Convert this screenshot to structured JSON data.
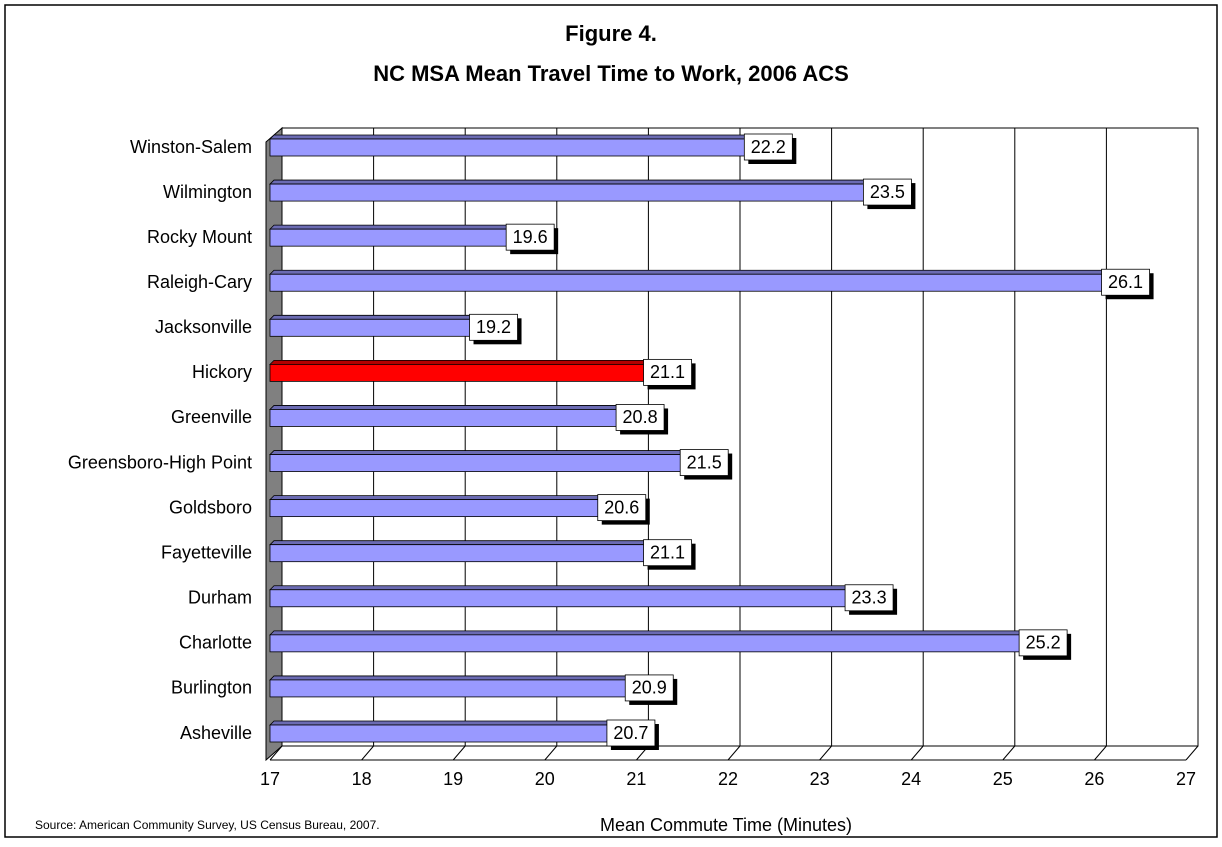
{
  "chart_data": {
    "type": "bar",
    "orientation": "horizontal",
    "title": "Figure 4.",
    "subtitle": "NC MSA Mean Travel Time to Work, 2006 ACS",
    "x_label": "Mean Commute Time (Minutes)",
    "source": "Source: American Community Survey, US Census Bureau, 2007.",
    "categories": [
      "Winston-Salem",
      "Wilmington",
      "Rocky Mount",
      "Raleigh-Cary",
      "Jacksonville",
      "Hickory",
      "Greenville",
      "Greensboro-High Point",
      "Goldsboro",
      "Fayetteville",
      "Durham",
      "Charlotte",
      "Burlington",
      "Asheville"
    ],
    "values": [
      22.2,
      23.5,
      19.6,
      26.1,
      19.2,
      21.1,
      20.8,
      21.5,
      20.6,
      21.1,
      23.3,
      25.2,
      20.9,
      20.7
    ],
    "colors": [
      "#9999ff",
      "#9999ff",
      "#9999ff",
      "#9999ff",
      "#9999ff",
      "#ff0000",
      "#9999ff",
      "#9999ff",
      "#9999ff",
      "#9999ff",
      "#9999ff",
      "#9999ff",
      "#9999ff",
      "#9999ff"
    ],
    "xlim": [
      17,
      27
    ],
    "xticks": [
      17,
      18,
      19,
      20,
      21,
      22,
      23,
      24,
      25,
      26,
      27
    ],
    "grid": true
  }
}
